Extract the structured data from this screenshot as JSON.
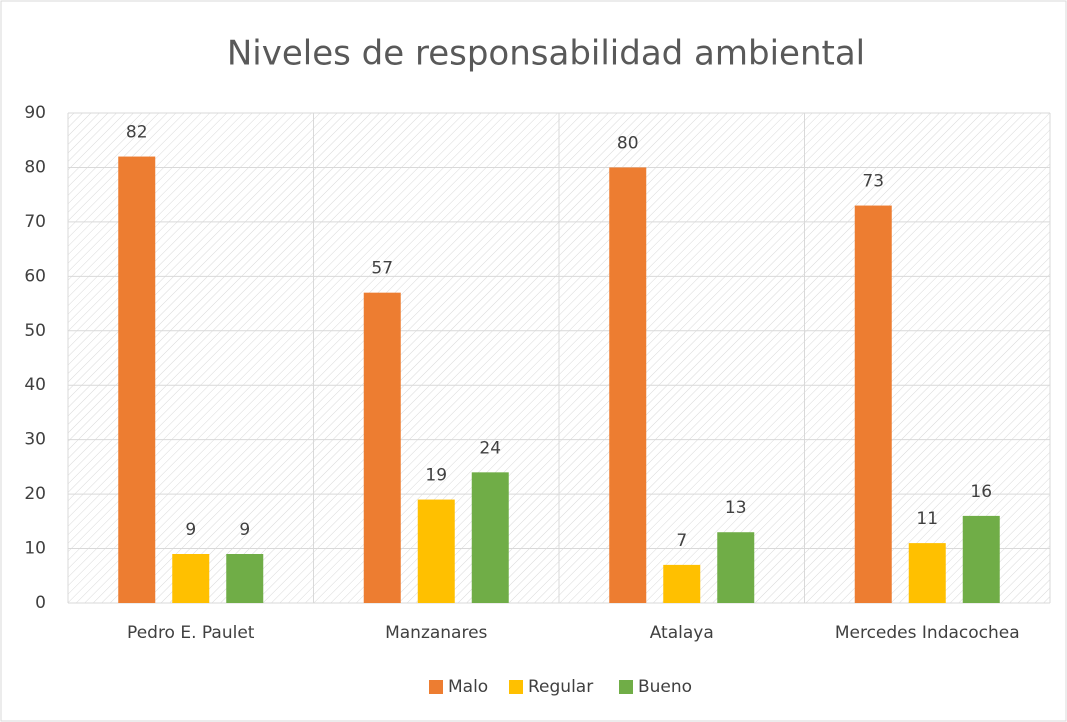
{
  "chart_data": {
    "type": "bar",
    "title": "Niveles de responsabilidad ambiental",
    "categories": [
      "Pedro E. Paulet",
      "Manzanares",
      "Atalaya",
      "Mercedes Indacochea"
    ],
    "series": [
      {
        "name": "Malo",
        "color": "#ed7d31",
        "values": [
          82,
          57,
          80,
          73
        ]
      },
      {
        "name": "Regular",
        "color": "#ffc000",
        "values": [
          9,
          19,
          7,
          11
        ]
      },
      {
        "name": "Bueno",
        "color": "#70ad47",
        "values": [
          9,
          24,
          13,
          16
        ]
      }
    ],
    "ylim": [
      0,
      90
    ],
    "yticks": [
      0,
      10,
      20,
      30,
      40,
      50,
      60,
      70,
      80,
      90
    ],
    "grid": true,
    "legend": "bottom"
  }
}
